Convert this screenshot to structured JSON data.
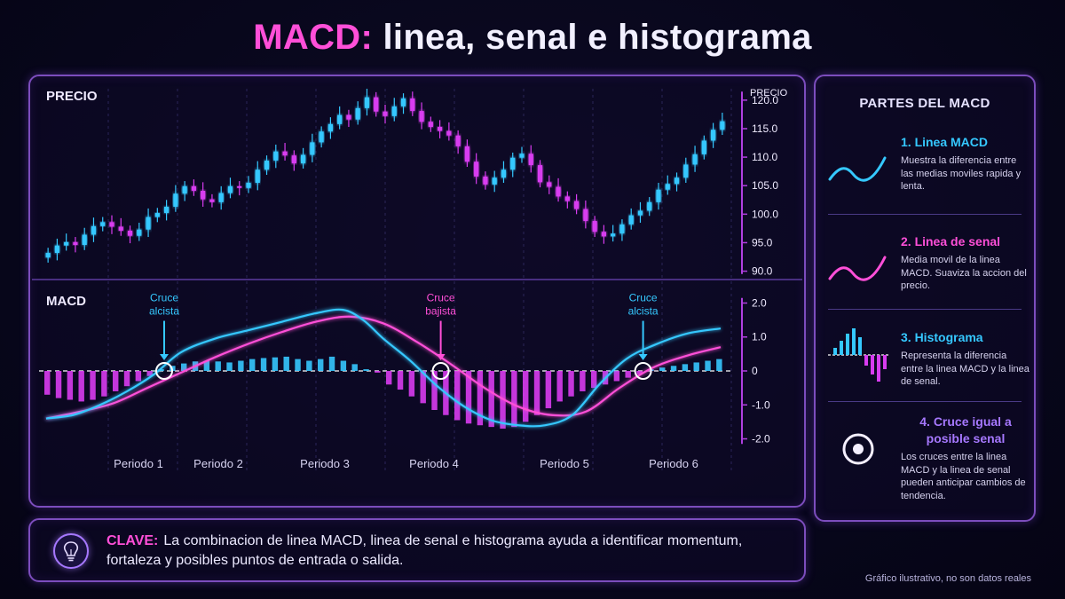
{
  "title": {
    "accent": "MACD:",
    "rest": " linea, senal e histograma"
  },
  "colors": {
    "macd": "#35c8ff",
    "signal": "#ff4fd8",
    "hist_pos": "#35c8ff",
    "hist_neg": "#d83cf0",
    "accent": "#ff4fd8",
    "purple": "#a678ff"
  },
  "chart_data": [
    {
      "type": "candlestick",
      "panel_label": "PRECIO",
      "axis_label": "PRECIO",
      "yticks": [
        "120.0",
        "115.0",
        "110.0",
        "105.0",
        "100.0",
        "95.0",
        "90.0"
      ],
      "ytick_values": [
        120,
        115,
        110,
        105,
        100,
        95,
        90
      ],
      "ylim": [
        89,
        122
      ],
      "close": [
        93.2,
        94.5,
        95.1,
        94.6,
        96.4,
        97.9,
        98.6,
        97.8,
        97.1,
        96.2,
        97.3,
        99.5,
        100.2,
        101.3,
        103.6,
        104.9,
        104.1,
        102.6,
        102.1,
        103.7,
        104.9,
        104.6,
        105.5,
        107.8,
        109.4,
        111.0,
        110.3,
        108.9,
        110.4,
        112.6,
        114.5,
        115.8,
        117.4,
        116.6,
        118.6,
        120.5,
        118.0,
        117.2,
        118.9,
        120.3,
        118.1,
        116.2,
        115.3,
        114.6,
        113.8,
        111.9,
        109.2,
        106.6,
        105.2,
        106.4,
        107.8,
        109.9,
        110.6,
        108.6,
        105.6,
        104.8,
        103.1,
        102.3,
        100.9,
        98.8,
        96.9,
        96.1,
        96.6,
        98.2,
        99.8,
        100.6,
        102.1,
        104.3,
        105.3,
        106.4,
        108.7,
        110.5,
        112.9,
        114.8,
        116.3
      ],
      "grid": "vertical-dashed"
    },
    {
      "type": "line+bar",
      "panel_label": "MACD",
      "yticks": [
        "2.0",
        "1.0",
        "0",
        "-1.0",
        "-2.0"
      ],
      "ytick_values": [
        2,
        1,
        0,
        -1,
        -2
      ],
      "ylim": [
        -2.3,
        2.3
      ],
      "series": [
        {
          "name": "Linea MACD",
          "x": [
            0,
            0.04,
            0.08,
            0.12,
            0.16,
            0.2,
            0.25,
            0.3,
            0.35,
            0.4,
            0.44,
            0.47,
            0.5,
            0.54,
            0.58,
            0.62,
            0.66,
            0.7,
            0.74,
            0.78,
            0.82,
            0.86,
            0.9,
            0.95,
            1
          ],
          "y": [
            -1.4,
            -1.3,
            -1.0,
            -0.6,
            -0.1,
            0.55,
            0.95,
            1.2,
            1.45,
            1.7,
            1.8,
            1.5,
            0.95,
            0.3,
            -0.45,
            -1.05,
            -1.45,
            -1.6,
            -1.6,
            -1.3,
            -0.4,
            0.35,
            0.75,
            1.1,
            1.25
          ]
        },
        {
          "name": "Linea de senal",
          "x": [
            0,
            0.05,
            0.1,
            0.15,
            0.2,
            0.25,
            0.3,
            0.35,
            0.4,
            0.45,
            0.5,
            0.55,
            0.6,
            0.65,
            0.7,
            0.75,
            0.8,
            0.85,
            0.9,
            0.95,
            1
          ],
          "y": [
            -1.4,
            -1.2,
            -0.95,
            -0.5,
            -0.05,
            0.4,
            0.8,
            1.15,
            1.45,
            1.6,
            1.4,
            0.85,
            0.2,
            -0.5,
            -1.05,
            -1.3,
            -1.2,
            -0.5,
            0.1,
            0.45,
            0.7
          ]
        },
        {
          "name": "Histograma",
          "values": [
            -0.7,
            -0.8,
            -0.85,
            -0.9,
            -0.85,
            -0.75,
            -0.6,
            -0.45,
            -0.3,
            -0.15,
            0.05,
            0.15,
            0.22,
            0.28,
            0.3,
            0.28,
            0.25,
            0.3,
            0.35,
            0.38,
            0.4,
            0.42,
            0.35,
            0.3,
            0.35,
            0.42,
            0.3,
            0.2,
            0.05,
            -0.05,
            -0.4,
            -0.55,
            -0.75,
            -0.95,
            -1.15,
            -1.3,
            -1.45,
            -1.55,
            -1.6,
            -1.65,
            -1.7,
            -1.65,
            -1.5,
            -1.3,
            -1.1,
            -0.9,
            -0.75,
            -0.6,
            -0.5,
            -0.4,
            -0.3,
            -0.2,
            -0.1,
            0.05,
            0.1,
            0.15,
            0.2,
            0.25,
            0.3,
            0.35
          ]
        }
      ],
      "zero_line": true,
      "annotations": [
        {
          "type": "cross",
          "x": 0.175,
          "y": 0,
          "color": "#35c8ff",
          "lines": [
            "Cruce",
            "alcista"
          ]
        },
        {
          "type": "cross",
          "x": 0.585,
          "y": 0,
          "color": "#ff4fd8",
          "lines": [
            "Cruce",
            "bajista"
          ]
        },
        {
          "type": "cross",
          "x": 0.885,
          "y": 0,
          "color": "#35c8ff",
          "lines": [
            "Cruce",
            "alcista"
          ]
        }
      ],
      "xcategories": [
        "Periodo 1",
        "Periodo 2",
        "Periodo 3",
        "Periodo 4",
        "Periodo 5",
        "Periodo 6"
      ]
    }
  ],
  "side_panel": {
    "title": "PARTES DEL MACD",
    "items": [
      {
        "heading": "1. Linea MACD",
        "color": "#35c8ff",
        "icon": "wave-blue-icon",
        "desc": "Muestra la diferencia entre las medias moviles rapida y lenta."
      },
      {
        "heading": "2. Linea de senal",
        "color": "#ff4fd8",
        "icon": "wave-pink-icon",
        "desc": "Media movil de la linea MACD. Suaviza la accion del precio."
      },
      {
        "heading": "3. Histograma",
        "color": "#35c8ff",
        "icon": "histogram-icon",
        "desc": "Representa la diferencia entre la linea MACD y la linea de senal."
      },
      {
        "heading": "4. Cruce igual a posible senal",
        "color": "#a678ff",
        "icon": "target-circle-icon",
        "desc": "Los cruces entre la linea MACD y la linea de senal pueden anticipar cambios de tendencia."
      }
    ]
  },
  "key": {
    "icon": "lightbulb-icon",
    "label": "CLAVE:",
    "text": "La combinacion de linea MACD, linea de senal e histograma ayuda a identificar momentum, fortaleza y posibles puntos de entrada o salida."
  },
  "footnote": "Gráfico ilustrativo, no son datos reales"
}
